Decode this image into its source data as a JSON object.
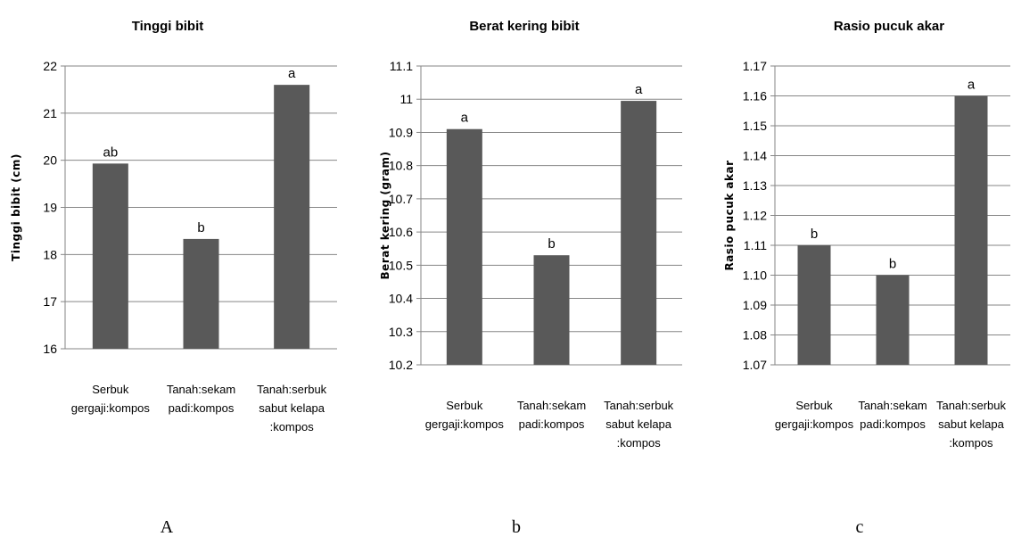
{
  "chart_data": [
    {
      "type": "bar",
      "title": "Tinggi bibit",
      "ylabel": "Tinggi bibit (cm)",
      "categories": [
        [
          "Serbuk",
          "gergaji:kompos"
        ],
        [
          "Tanah:sekam",
          "padi:kompos"
        ],
        [
          "Tanah:serbuk",
          "sabut kelapa",
          ":kompos"
        ]
      ],
      "values": [
        19.93,
        18.33,
        21.6
      ],
      "value_labels": [
        "ab",
        "b",
        "a"
      ],
      "ylim": [
        16,
        22
      ],
      "yticks": [
        "16",
        "17",
        "18",
        "19",
        "20",
        "21",
        "22"
      ],
      "grid": true,
      "bar_color": "#595959"
    },
    {
      "type": "bar",
      "title": "Berat kering bibit",
      "ylabel": "Berat kering (gram)",
      "categories": [
        [
          "Serbuk",
          "gergaji:kompos"
        ],
        [
          "Tanah:sekam",
          "padi:kompos"
        ],
        [
          "Tanah:serbuk",
          "sabut kelapa",
          ":kompos"
        ]
      ],
      "values": [
        10.91,
        10.53,
        10.995
      ],
      "value_labels": [
        "a",
        "b",
        "a"
      ],
      "ylim": [
        10.2,
        11.1
      ],
      "yticks": [
        "10.2",
        "10.3",
        "10.4",
        "10.5",
        "10.6",
        "10.7",
        "10.8",
        "10.9",
        "11",
        "11.1"
      ],
      "grid": true,
      "bar_color": "#595959"
    },
    {
      "type": "bar",
      "title": "Rasio pucuk akar",
      "ylabel": "Rasio pucuk akar",
      "categories": [
        [
          "Serbuk",
          "gergaji:kompos"
        ],
        [
          "Tanah:sekam",
          "padi:kompos"
        ],
        [
          "Tanah:serbuk",
          "sabut kelapa",
          ":kompos"
        ]
      ],
      "values": [
        1.11,
        1.1,
        1.16
      ],
      "value_labels": [
        "b",
        "b",
        "a"
      ],
      "ylim": [
        1.07,
        1.17
      ],
      "yticks": [
        "1.07",
        "1.08",
        "1.09",
        "1.10",
        "1.11",
        "1.12",
        "1.13",
        "1.14",
        "1.15",
        "1.16",
        "1.17"
      ],
      "grid": true,
      "bar_color": "#595959"
    }
  ],
  "panel_labels": [
    "A",
    "b",
    "c"
  ]
}
